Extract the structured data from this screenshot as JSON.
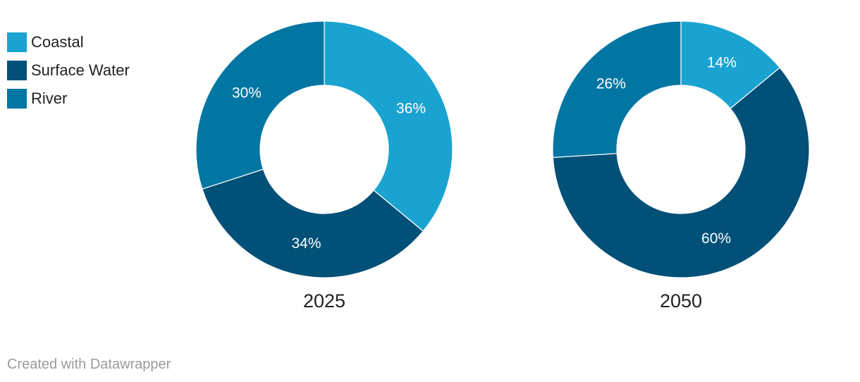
{
  "colors": {
    "Coastal": "#1aa3d1",
    "Surface Water": "#005078",
    "River": "#0176a3"
  },
  "legend": [
    "Coastal",
    "Surface Water",
    "River"
  ],
  "chart_data": [
    {
      "type": "pie",
      "title": "2025",
      "categories": [
        "Coastal",
        "Surface Water",
        "River"
      ],
      "values": [
        36,
        34,
        30
      ],
      "labels": [
        "36%",
        "34%",
        "30%"
      ]
    },
    {
      "type": "pie",
      "title": "2050",
      "categories": [
        "Coastal",
        "Surface Water",
        "River"
      ],
      "values": [
        14,
        60,
        26
      ],
      "labels": [
        "14%",
        "60%",
        "26%"
      ]
    }
  ],
  "footer": "Created with Datawrapper"
}
